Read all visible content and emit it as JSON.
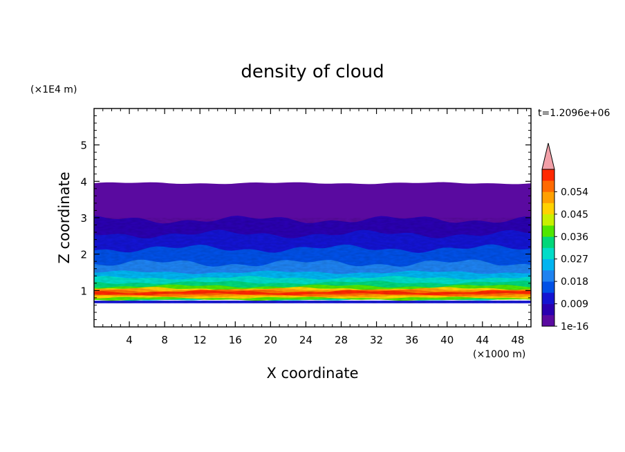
{
  "chart_data": {
    "type": "heatmap",
    "title": "density of cloud",
    "xlabel": "X coordinate",
    "ylabel": "Z coordinate",
    "x_unit": "(×1000 m)",
    "y_unit": "(×1E4 m)",
    "time_label": "t=1.2096e+06",
    "xlim": [
      0,
      49.5
    ],
    "ylim": [
      0,
      6
    ],
    "x_ticks": [
      "4",
      "8",
      "12",
      "16",
      "20",
      "24",
      "28",
      "32",
      "36",
      "40",
      "44",
      "48"
    ],
    "y_ticks": [
      "1",
      "2",
      "3",
      "4",
      "5"
    ],
    "colorbar": {
      "tick_labels": [
        "1e-16",
        "0.009",
        "0.018",
        "0.027",
        "0.036",
        "0.045",
        "0.054"
      ],
      "levels": 14,
      "extend": "max",
      "colors": [
        "#5a0aa0",
        "#2a00b0",
        "#1414d2",
        "#0050e6",
        "#1e82f0",
        "#00b4f0",
        "#00dcc8",
        "#00d77a",
        "#50e600",
        "#c8f000",
        "#ffd200",
        "#ffa000",
        "#ff6a00",
        "#ff2800"
      ],
      "extend_color": "#f2a0a8"
    },
    "field_profile": {
      "description": "horizontally layered; density peaks near z=1 and falls to minimum above",
      "cloud_base_z": 0.65,
      "cloud_top_z": 3.95,
      "peak_z": 0.95,
      "peak_value": 0.058
    }
  }
}
